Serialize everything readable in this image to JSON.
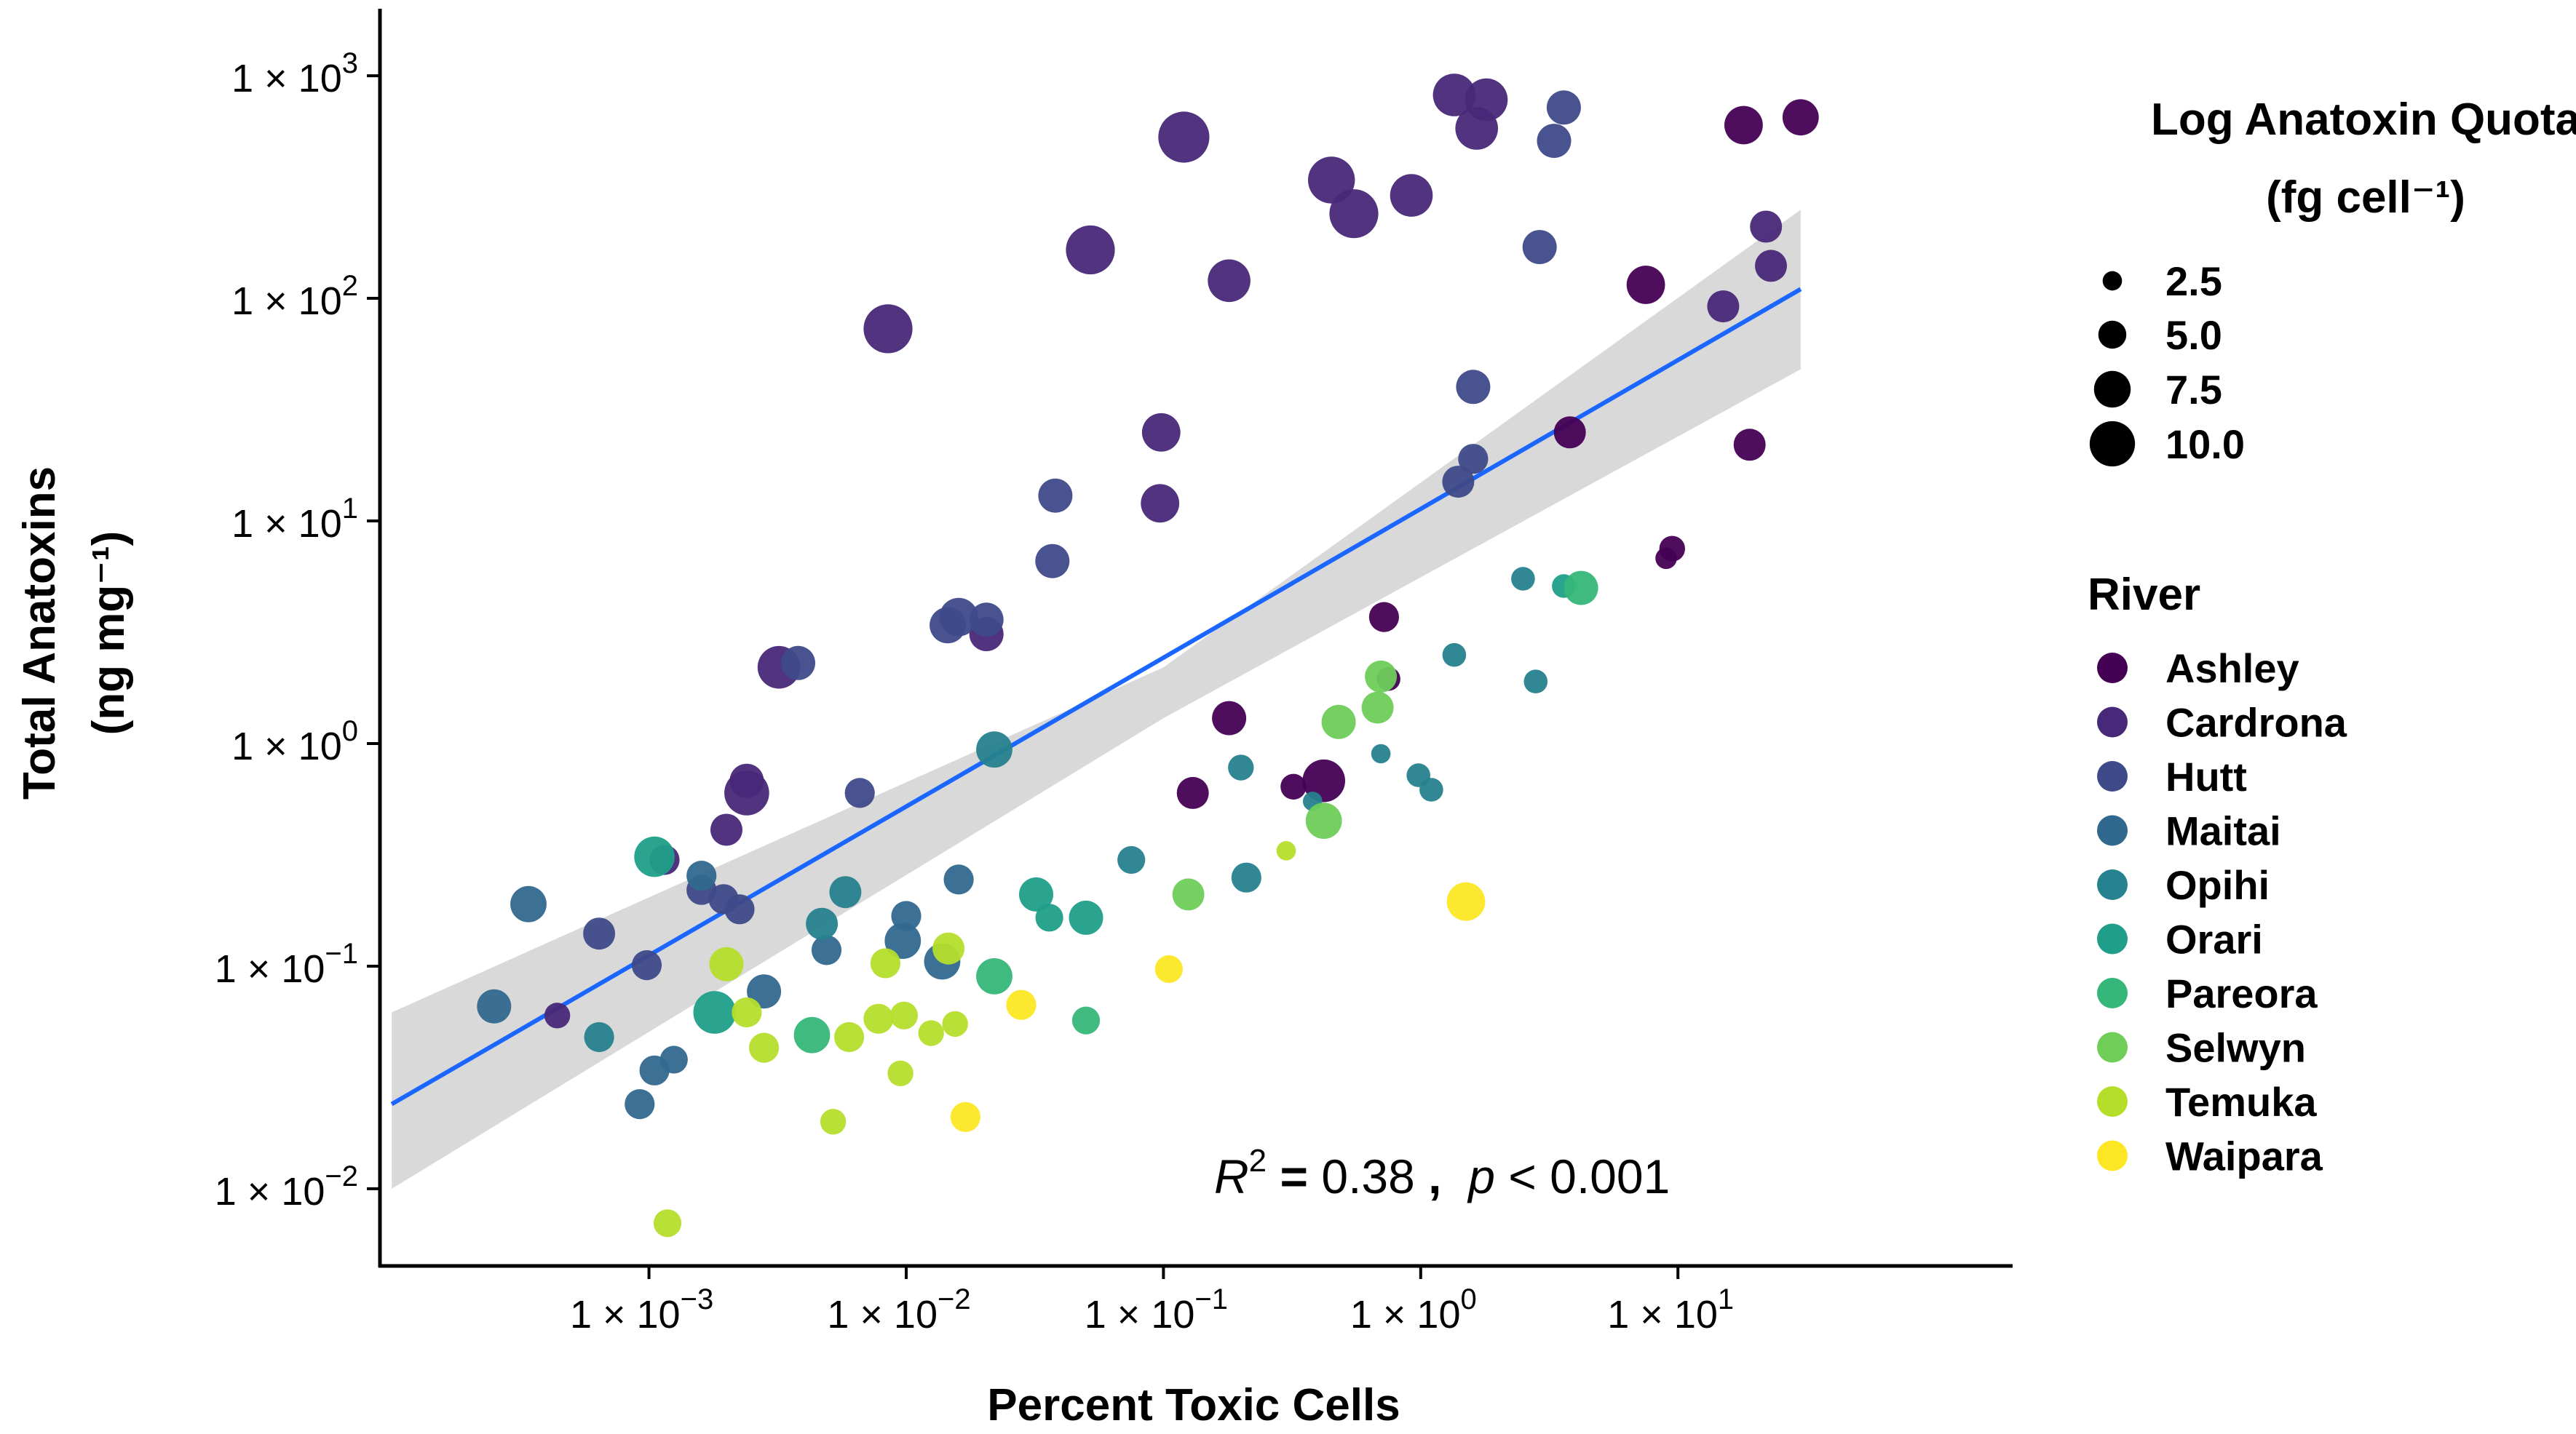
{
  "chart_data": {
    "type": "scatter",
    "title": "",
    "xlabel": "Percent Toxic Cells",
    "ylabel_line1": "Total Anatoxins",
    "ylabel_line2": "(ng mg⁻¹)",
    "xscale": "log10",
    "yscale": "log10",
    "xlim": [
      9e-05,
      200
    ],
    "ylim": [
      0.0045,
      2000
    ],
    "x_ticks": [
      {
        "value": 0.001,
        "mant": "1 × 10",
        "exp": "−3"
      },
      {
        "value": 0.01,
        "mant": "1 × 10",
        "exp": "−2"
      },
      {
        "value": 0.1,
        "mant": "1 × 10",
        "exp": "−1"
      },
      {
        "value": 1,
        "mant": "1 × 10",
        "exp": "0"
      },
      {
        "value": 10,
        "mant": "1 × 10",
        "exp": "1"
      }
    ],
    "y_ticks": [
      {
        "value": 0.01,
        "mant": "1 × 10",
        "exp": "−2"
      },
      {
        "value": 0.1,
        "mant": "1 × 10",
        "exp": "−1"
      },
      {
        "value": 1,
        "mant": "1 × 10",
        "exp": "0"
      },
      {
        "value": 10,
        "mant": "1 × 10",
        "exp": "1"
      },
      {
        "value": 100,
        "mant": "1 × 10",
        "exp": "2"
      },
      {
        "value": 1000,
        "mant": "1 × 10",
        "exp": "3"
      }
    ],
    "annotation": {
      "r2_label": "R",
      "r2_exp": "2",
      "equals": " = ",
      "r2_value": "0.38",
      "comma": " ,  ",
      "p_label": "p",
      "p_rel": " < ",
      "p_value": "0.001"
    },
    "regression": {
      "type": "linear (log-log)",
      "x_start": 0.0001,
      "x_end": 30,
      "y_start": 0.024,
      "y_end": 110,
      "ci_start": [
        0.01,
        0.062
      ],
      "ci_mid": [
        1.3,
        2.2
      ],
      "ci_mid_x": 0.1,
      "ci_end": [
        48,
        250
      ],
      "color": "#1a66ff",
      "band_color": "#d9d9d9"
    },
    "legend": {
      "size_title_line1": "Log Anatoxin Quota",
      "size_title_line2": "(fg cell⁻¹)",
      "size_items": [
        "2.5",
        "5.0",
        "7.5",
        "10.0"
      ],
      "size_values": [
        2.5,
        5.0,
        7.5,
        10.0
      ],
      "color_title": "River",
      "rivers": [
        {
          "name": "Ashley",
          "color": "#440154"
        },
        {
          "name": "Cardrona",
          "color": "#482878"
        },
        {
          "name": "Hutt",
          "color": "#3e4a89"
        },
        {
          "name": "Maitai",
          "color": "#31688e"
        },
        {
          "name": "Opihi",
          "color": "#26828e"
        },
        {
          "name": "Orari",
          "color": "#1f9e89"
        },
        {
          "name": "Pareora",
          "color": "#35b779"
        },
        {
          "name": "Selwyn",
          "color": "#6ece58"
        },
        {
          "name": "Temuka",
          "color": "#b5de2b"
        },
        {
          "name": "Waipara",
          "color": "#fde725"
        }
      ]
    },
    "points": [
      {
        "river": "Ashley",
        "x": 18,
        "y": 600,
        "q": 6
      },
      {
        "river": "Ashley",
        "x": 30,
        "y": 650,
        "q": 5.5
      },
      {
        "river": "Ashley",
        "x": 7.5,
        "y": 115,
        "q": 6
      },
      {
        "river": "Ashley",
        "x": 19,
        "y": 22,
        "q": 4.5
      },
      {
        "river": "Ashley",
        "x": 3.8,
        "y": 25,
        "q": 4.5
      },
      {
        "river": "Ashley",
        "x": 9.5,
        "y": 7.5,
        "q": 3
      },
      {
        "river": "Ashley",
        "x": 9,
        "y": 6.8,
        "q": 2
      },
      {
        "river": "Ashley",
        "x": 0.72,
        "y": 3.7,
        "q": 4
      },
      {
        "river": "Ashley",
        "x": 0.75,
        "y": 1.95,
        "q": 2.5
      },
      {
        "river": "Ashley",
        "x": 0.18,
        "y": 1.3,
        "q": 5
      },
      {
        "river": "Ashley",
        "x": 0.42,
        "y": 0.68,
        "q": 7
      },
      {
        "river": "Ashley",
        "x": 0.13,
        "y": 0.6,
        "q": 4.5
      },
      {
        "river": "Ashley",
        "x": 0.32,
        "y": 0.64,
        "q": 3
      },
      {
        "river": "Cardrona",
        "x": 1.35,
        "y": 820,
        "q": 7
      },
      {
        "river": "Cardrona",
        "x": 1.8,
        "y": 780,
        "q": 7
      },
      {
        "river": "Cardrona",
        "x": 1.65,
        "y": 580,
        "q": 7
      },
      {
        "river": "Cardrona",
        "x": 0.12,
        "y": 530,
        "q": 9
      },
      {
        "river": "Cardrona",
        "x": 0.45,
        "y": 340,
        "q": 8
      },
      {
        "river": "Cardrona",
        "x": 0.55,
        "y": 240,
        "q": 8.5
      },
      {
        "river": "Cardrona",
        "x": 0.92,
        "y": 290,
        "q": 7
      },
      {
        "river": "Cardrona",
        "x": 0.052,
        "y": 165,
        "q": 8.5
      },
      {
        "river": "Cardrona",
        "x": 0.18,
        "y": 120,
        "q": 7
      },
      {
        "river": "Cardrona",
        "x": 0.0085,
        "y": 73,
        "q": 8.5
      },
      {
        "river": "Cardrona",
        "x": 0.098,
        "y": 25,
        "q": 6
      },
      {
        "river": "Cardrona",
        "x": 0.097,
        "y": 12,
        "q": 6
      },
      {
        "river": "Cardrona",
        "x": 0.0205,
        "y": 3.1,
        "q": 5
      },
      {
        "river": "Cardrona",
        "x": 0.0032,
        "y": 2.2,
        "q": 7
      },
      {
        "river": "Cardrona",
        "x": 0.0024,
        "y": 0.6,
        "q": 7.5
      },
      {
        "river": "Cardrona",
        "x": 0.0024,
        "y": 0.68,
        "q": 5
      },
      {
        "river": "Cardrona",
        "x": 0.002,
        "y": 0.41,
        "q": 4.5
      },
      {
        "river": "Cardrona",
        "x": 0.00115,
        "y": 0.3,
        "q": 4
      },
      {
        "river": "Cardrona",
        "x": 0.00044,
        "y": 0.06,
        "q": 3
      },
      {
        "river": "Cardrona",
        "x": 22,
        "y": 210,
        "q": 4.5
      },
      {
        "river": "Cardrona",
        "x": 23,
        "y": 140,
        "q": 4.5
      },
      {
        "river": "Cardrona",
        "x": 15,
        "y": 92,
        "q": 4.5
      },
      {
        "river": "Hutt",
        "x": 3.6,
        "y": 720,
        "q": 5
      },
      {
        "river": "Hutt",
        "x": 3.3,
        "y": 510,
        "q": 5
      },
      {
        "river": "Hutt",
        "x": 2.9,
        "y": 170,
        "q": 5
      },
      {
        "river": "Hutt",
        "x": 1.6,
        "y": 40,
        "q": 5
      },
      {
        "river": "Hutt",
        "x": 1.6,
        "y": 19,
        "q": 4
      },
      {
        "river": "Hutt",
        "x": 1.4,
        "y": 15,
        "q": 4.5
      },
      {
        "river": "Hutt",
        "x": 0.038,
        "y": 13,
        "q": 5
      },
      {
        "river": "Hutt",
        "x": 0.037,
        "y": 6.6,
        "q": 5
      },
      {
        "river": "Hutt",
        "x": 0.016,
        "y": 3.7,
        "q": 6
      },
      {
        "river": "Hutt",
        "x": 0.0145,
        "y": 3.4,
        "q": 5.5
      },
      {
        "river": "Hutt",
        "x": 0.0205,
        "y": 3.6,
        "q": 5
      },
      {
        "river": "Hutt",
        "x": 0.0038,
        "y": 2.3,
        "q": 5
      },
      {
        "river": "Hutt",
        "x": 0.0066,
        "y": 0.6,
        "q": 4
      },
      {
        "river": "Hutt",
        "x": 0.00195,
        "y": 0.2,
        "q": 4
      },
      {
        "river": "Hutt",
        "x": 0.0016,
        "y": 0.22,
        "q": 4
      },
      {
        "river": "Hutt",
        "x": 0.00225,
        "y": 0.18,
        "q": 4
      },
      {
        "river": "Hutt",
        "x": 0.00064,
        "y": 0.14,
        "q": 4.5
      },
      {
        "river": "Hutt",
        "x": 0.00098,
        "y": 0.101,
        "q": 4
      },
      {
        "river": "Maitai",
        "x": 0.00034,
        "y": 0.19,
        "q": 5.5
      },
      {
        "river": "Maitai",
        "x": 0.00025,
        "y": 0.066,
        "q": 5
      },
      {
        "river": "Maitai",
        "x": 0.0016,
        "y": 0.255,
        "q": 4
      },
      {
        "river": "Maitai",
        "x": 0.0049,
        "y": 0.118,
        "q": 4
      },
      {
        "river": "Maitai",
        "x": 0.01,
        "y": 0.168,
        "q": 4
      },
      {
        "river": "Maitai",
        "x": 0.0097,
        "y": 0.13,
        "q": 5.5
      },
      {
        "river": "Maitai",
        "x": 0.0138,
        "y": 0.105,
        "q": 5.5
      },
      {
        "river": "Maitai",
        "x": 0.0028,
        "y": 0.077,
        "q": 5
      },
      {
        "river": "Maitai",
        "x": 0.016,
        "y": 0.245,
        "q": 4
      },
      {
        "river": "Maitai",
        "x": 0.00105,
        "y": 0.034,
        "q": 4
      },
      {
        "river": "Maitai",
        "x": 0.00092,
        "y": 0.024,
        "q": 4
      },
      {
        "river": "Maitai",
        "x": 0.00125,
        "y": 0.038,
        "q": 3.5
      },
      {
        "river": "Opihi",
        "x": 0.022,
        "y": 0.94,
        "q": 5.5
      },
      {
        "river": "Opihi",
        "x": 0.0047,
        "y": 0.155,
        "q": 4.5
      },
      {
        "river": "Opihi",
        "x": 0.0058,
        "y": 0.215,
        "q": 4.5
      },
      {
        "river": "Opihi",
        "x": 0.00064,
        "y": 0.048,
        "q": 4
      },
      {
        "river": "Opihi",
        "x": 0.21,
        "y": 0.25,
        "q": 4
      },
      {
        "river": "Opihi",
        "x": 0.2,
        "y": 0.78,
        "q": 3
      },
      {
        "river": "Opihi",
        "x": 0.075,
        "y": 0.3,
        "q": 3.5
      },
      {
        "river": "Opihi",
        "x": 0.98,
        "y": 0.72,
        "q": 2.5
      },
      {
        "river": "Opihi",
        "x": 1.1,
        "y": 0.62,
        "q": 2.5
      },
      {
        "river": "Opihi",
        "x": 1.35,
        "y": 2.5,
        "q": 2.5
      },
      {
        "river": "Opihi",
        "x": 2.8,
        "y": 1.9,
        "q": 2.5
      },
      {
        "river": "Opihi",
        "x": 2.5,
        "y": 5.5,
        "q": 2.5
      },
      {
        "river": "Opihi",
        "x": 0.7,
        "y": 0.9,
        "q": 1.5
      },
      {
        "river": "Opihi",
        "x": 0.38,
        "y": 0.55,
        "q": 1.5
      },
      {
        "river": "Orari",
        "x": 0.00105,
        "y": 0.31,
        "q": 6.5
      },
      {
        "river": "Orari",
        "x": 0.0018,
        "y": 0.062,
        "q": 7
      },
      {
        "river": "Orari",
        "x": 0.032,
        "y": 0.21,
        "q": 5
      },
      {
        "river": "Orari",
        "x": 0.05,
        "y": 0.165,
        "q": 5
      },
      {
        "river": "Orari",
        "x": 0.036,
        "y": 0.165,
        "q": 3.5
      },
      {
        "river": "Orari",
        "x": 3.6,
        "y": 5.1,
        "q": 2.5
      },
      {
        "river": "Pareora",
        "x": 0.022,
        "y": 0.09,
        "q": 5.5
      },
      {
        "river": "Pareora",
        "x": 0.0043,
        "y": 0.049,
        "q": 5.5
      },
      {
        "river": "Pareora",
        "x": 0.05,
        "y": 0.057,
        "q": 3.5
      },
      {
        "river": "Pareora",
        "x": 4.2,
        "y": 5,
        "q": 5
      },
      {
        "river": "Selwyn",
        "x": 0.48,
        "y": 1.25,
        "q": 5
      },
      {
        "river": "Selwyn",
        "x": 0.7,
        "y": 2,
        "q": 4.5
      },
      {
        "river": "Selwyn",
        "x": 0.68,
        "y": 1.45,
        "q": 4.5
      },
      {
        "river": "Selwyn",
        "x": 0.42,
        "y": 0.45,
        "q": 5.5
      },
      {
        "river": "Selwyn",
        "x": 0.125,
        "y": 0.21,
        "q": 4.5
      },
      {
        "river": "Temuka",
        "x": 0.002,
        "y": 0.102,
        "q": 5
      },
      {
        "river": "Temuka",
        "x": 0.0024,
        "y": 0.062,
        "q": 4
      },
      {
        "river": "Temuka",
        "x": 0.0028,
        "y": 0.043,
        "q": 4
      },
      {
        "river": "Temuka",
        "x": 0.006,
        "y": 0.048,
        "q": 4
      },
      {
        "river": "Temuka",
        "x": 0.0078,
        "y": 0.058,
        "q": 4
      },
      {
        "river": "Temuka",
        "x": 0.0083,
        "y": 0.103,
        "q": 4
      },
      {
        "river": "Temuka",
        "x": 0.0098,
        "y": 0.06,
        "q": 3.5
      },
      {
        "river": "Temuka",
        "x": 0.0146,
        "y": 0.12,
        "q": 4.5
      },
      {
        "river": "Temuka",
        "x": 0.0155,
        "y": 0.055,
        "q": 3
      },
      {
        "river": "Temuka",
        "x": 0.0125,
        "y": 0.05,
        "q": 3
      },
      {
        "river": "Temuka",
        "x": 0.0095,
        "y": 0.033,
        "q": 3
      },
      {
        "river": "Temuka",
        "x": 0.0052,
        "y": 0.02,
        "q": 3
      },
      {
        "river": "Temuka",
        "x": 0.00118,
        "y": 0.007,
        "q": 3.5
      },
      {
        "river": "Temuka",
        "x": 0.3,
        "y": 0.33,
        "q": 1.5
      },
      {
        "river": "Waipara",
        "x": 1.5,
        "y": 0.195,
        "q": 6
      },
      {
        "river": "Waipara",
        "x": 0.028,
        "y": 0.067,
        "q": 4
      },
      {
        "river": "Waipara",
        "x": 0.017,
        "y": 0.021,
        "q": 4
      },
      {
        "river": "Waipara",
        "x": 0.105,
        "y": 0.097,
        "q": 3.5
      }
    ]
  }
}
